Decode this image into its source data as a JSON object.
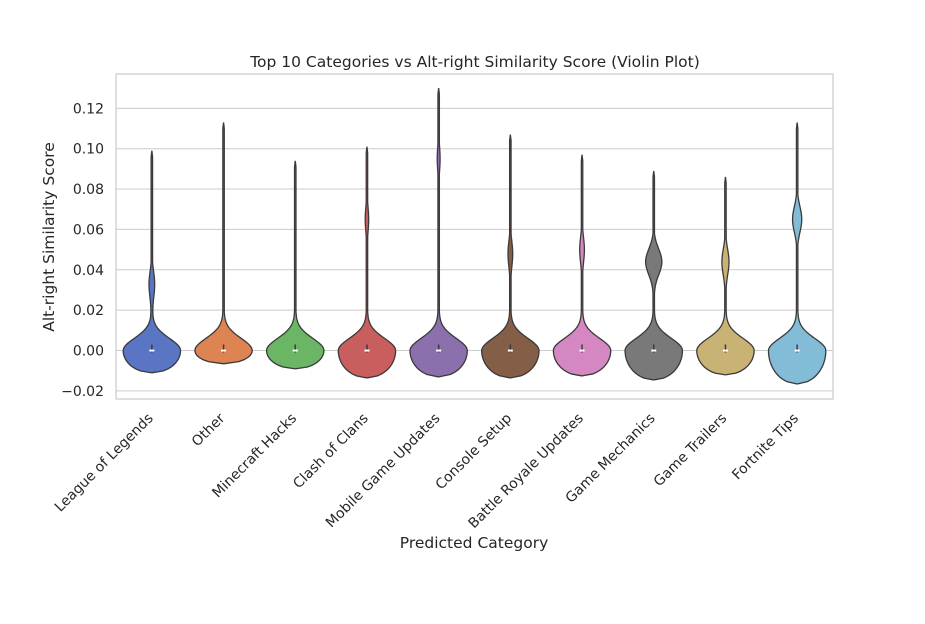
{
  "chart_data": {
    "type": "violin",
    "title": "Top 10 Categories vs Alt-right Similarity Score (Violin Plot)",
    "xlabel": "Predicted Category",
    "ylabel": "Alt-right Similarity Score",
    "ylim": [
      -0.024,
      0.137
    ],
    "yticks": [
      -0.02,
      0.0,
      0.02,
      0.04,
      0.06,
      0.08,
      0.1,
      0.12
    ],
    "ytick_labels": [
      "−0.02",
      "0.00",
      "0.02",
      "0.04",
      "0.06",
      "0.08",
      "0.10",
      "0.12"
    ],
    "grid": true,
    "categories": [
      "League of Legends",
      "Other",
      "Minecraft Hacks",
      "Clash of Clans",
      "Mobile Game Updates",
      "Console Setup",
      "Battle Royale Updates",
      "Game Mechanics",
      "Game Trailers",
      "Fortnite Tips"
    ],
    "colors": [
      "#5975c4",
      "#dd8452",
      "#6bb664",
      "#c95e5e",
      "#8c70ae",
      "#845e46",
      "#d587c1",
      "#797979",
      "#c9b374",
      "#82bcd7"
    ],
    "violins": [
      {
        "category": "League of Legends",
        "min": -0.011,
        "max": 0.099,
        "median": 0.0,
        "width_at_zero": 0.8,
        "secondary_bulge": {
          "center": 0.033,
          "width": 0.09
        }
      },
      {
        "category": "Other",
        "min": -0.0065,
        "max": 0.113,
        "median": 0.0,
        "width_at_zero": 0.8,
        "secondary_bulge": null
      },
      {
        "category": "Minecraft Hacks",
        "min": -0.009,
        "max": 0.094,
        "median": 0.0,
        "width_at_zero": 0.8,
        "secondary_bulge": null
      },
      {
        "category": "Clash of Clans",
        "min": -0.0135,
        "max": 0.101,
        "median": 0.0,
        "width_at_zero": 0.8,
        "secondary_bulge": {
          "center": 0.065,
          "width": 0.06
        }
      },
      {
        "category": "Mobile Game Updates",
        "min": -0.013,
        "max": 0.13,
        "median": 0.0,
        "width_at_zero": 0.8,
        "secondary_bulge": {
          "center": 0.095,
          "width": 0.05
        }
      },
      {
        "category": "Console Setup",
        "min": -0.0135,
        "max": 0.107,
        "median": 0.0,
        "width_at_zero": 0.8,
        "secondary_bulge": {
          "center": 0.048,
          "width": 0.08
        }
      },
      {
        "category": "Battle Royale Updates",
        "min": -0.0125,
        "max": 0.097,
        "median": 0.0,
        "width_at_zero": 0.8,
        "secondary_bulge": {
          "center": 0.05,
          "width": 0.08
        }
      },
      {
        "category": "Game Mechanics",
        "min": -0.0145,
        "max": 0.089,
        "median": 0.0,
        "width_at_zero": 0.8,
        "secondary_bulge": {
          "center": 0.044,
          "width": 0.28
        }
      },
      {
        "category": "Game Trailers",
        "min": -0.012,
        "max": 0.086,
        "median": 0.0,
        "width_at_zero": 0.8,
        "secondary_bulge": {
          "center": 0.044,
          "width": 0.12
        }
      },
      {
        "category": "Fortnite Tips",
        "min": -0.0165,
        "max": 0.113,
        "median": 0.0,
        "width_at_zero": 0.8,
        "secondary_bulge": {
          "center": 0.065,
          "width": 0.16
        }
      }
    ]
  }
}
